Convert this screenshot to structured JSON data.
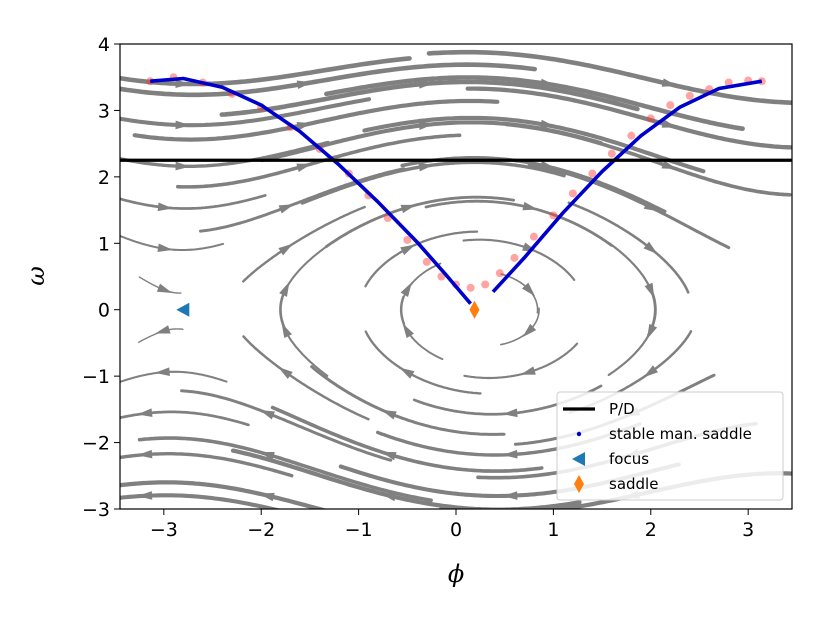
{
  "chart_data": {
    "type": "phase-portrait",
    "xlabel": "ϕ",
    "ylabel": "ω",
    "xlim": [
      -3.45,
      3.45
    ],
    "ylim": [
      -3,
      4
    ],
    "xticks": [
      -3,
      -2,
      -1,
      0,
      1,
      2,
      3
    ],
    "xtick_labels": [
      "−3",
      "−2",
      "−1",
      "0",
      "1",
      "2",
      "3"
    ],
    "yticks": [
      -3,
      -2,
      -1,
      0,
      1,
      2,
      3,
      4
    ],
    "ytick_labels": [
      "−3",
      "−2",
      "−1",
      "0",
      "1",
      "2",
      "3",
      "4"
    ],
    "grid": false,
    "legend_position": "lower-right",
    "legend": [
      {
        "label": "P/D",
        "marker": "line",
        "color": "#000000"
      },
      {
        "label": "stable man. saddle",
        "marker": "dot",
        "color": "#0000cc"
      },
      {
        "label": "focus",
        "marker": "triangle-left",
        "color": "#1f77b4"
      },
      {
        "label": "saddle",
        "marker": "diamond",
        "color": "#ff7f0e"
      }
    ],
    "pd_line": {
      "y": 2.25,
      "color": "#000000"
    },
    "focus_point": {
      "x": -2.8,
      "y": 0,
      "color": "#1f77b4"
    },
    "saddle_point": {
      "x": 0.19,
      "y": 0,
      "color": "#ff7f0e"
    },
    "stable_manifold": {
      "color": "#0000cc",
      "left_branch": [
        [
          -3.14,
          3.44
        ],
        [
          -2.8,
          3.48
        ],
        [
          -2.4,
          3.35
        ],
        [
          -2.0,
          3.08
        ],
        [
          -1.6,
          2.68
        ],
        [
          -1.2,
          2.18
        ],
        [
          -0.8,
          1.62
        ],
        [
          -0.4,
          1.02
        ],
        [
          -0.1,
          0.52
        ],
        [
          0.15,
          0.09
        ]
      ],
      "right_branch": [
        [
          0.38,
          0.27
        ],
        [
          0.7,
          0.78
        ],
        [
          1.1,
          1.46
        ],
        [
          1.5,
          2.08
        ],
        [
          1.9,
          2.62
        ],
        [
          2.3,
          3.05
        ],
        [
          2.7,
          3.33
        ],
        [
          3.14,
          3.44
        ]
      ]
    },
    "trajectory_points": {
      "color": "#ff3333",
      "points": [
        [
          -3.14,
          3.44
        ],
        [
          -2.9,
          3.5
        ],
        [
          -2.6,
          3.42
        ],
        [
          -2.3,
          3.25
        ],
        [
          -2.0,
          3.05
        ],
        [
          -1.7,
          2.75
        ],
        [
          -1.4,
          2.42
        ],
        [
          -1.1,
          2.05
        ],
        [
          -0.9,
          1.72
        ],
        [
          -0.7,
          1.38
        ],
        [
          -0.5,
          1.05
        ],
        [
          -0.3,
          0.72
        ],
        [
          -0.15,
          0.5
        ],
        [
          0.0,
          0.38
        ],
        [
          0.15,
          0.33
        ],
        [
          0.3,
          0.38
        ],
        [
          0.45,
          0.55
        ],
        [
          0.6,
          0.78
        ],
        [
          0.8,
          1.1
        ],
        [
          1.0,
          1.42
        ],
        [
          1.2,
          1.75
        ],
        [
          1.4,
          2.05
        ],
        [
          1.6,
          2.35
        ],
        [
          1.8,
          2.62
        ],
        [
          2.0,
          2.88
        ],
        [
          2.2,
          3.08
        ],
        [
          2.4,
          3.22
        ],
        [
          2.6,
          3.32
        ],
        [
          2.8,
          3.42
        ],
        [
          3.0,
          3.45
        ],
        [
          3.14,
          3.44
        ]
      ]
    },
    "stream_field": {
      "color": "#808080",
      "equation": "dphi/dt = omega, domega/dt = -sin(phi) + 0.3*cos(phi) - 0.05*omega",
      "period": 6.283185
    }
  }
}
